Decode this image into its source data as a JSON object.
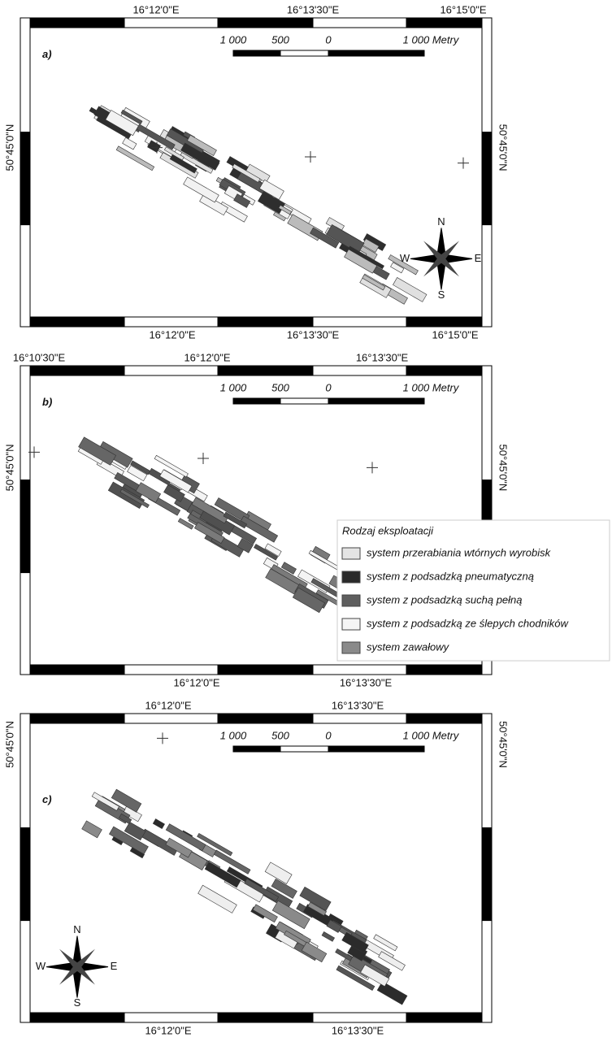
{
  "panels": [
    {
      "label": "a)",
      "top_labels": [
        "16°12'0\"E",
        "16°13'30\"E",
        "16°15'0\"E"
      ],
      "bottom_labels": [
        "16°12'0\"E",
        "16°13'30\"E",
        "16°15'0\"E"
      ],
      "left_label": "50°45'0\"N",
      "right_label": "50°45'0\"N",
      "scale": [
        "1 000",
        "500",
        "0",
        "1 000 Metry"
      ],
      "compass": [
        "N",
        "S",
        "W",
        "E"
      ]
    },
    {
      "label": "b)",
      "top_labels": [
        "16°10'30\"E",
        "16°12'0\"E",
        "16°13'30\"E"
      ],
      "bottom_labels": [
        "16°12'0\"E",
        "16°13'30\"E"
      ],
      "left_label": "50°45'0\"N",
      "right_label": "50°45'0\"N",
      "scale": [
        "1 000",
        "500",
        "0",
        "1 000 Metry"
      ]
    },
    {
      "label": "c)",
      "top_labels": [
        "16°12'0\"E",
        "16°13'30\"E"
      ],
      "bottom_labels": [
        "16°12'0\"E",
        "16°13'30\"E"
      ],
      "left_label": "50°45'0\"N",
      "right_label": "50°45'0\"N",
      "scale": [
        "1 000",
        "500",
        "0",
        "1 000 Metry"
      ],
      "compass": [
        "N",
        "S",
        "W",
        "E"
      ]
    }
  ],
  "legend": {
    "title": "Rodzaj eksploatacji",
    "items": [
      {
        "name": "system przerabiania wtórnych wyrobisk",
        "color": "#e4e4e4"
      },
      {
        "name": "system z podsadzką pneumatyczną",
        "color": "#2a2a2a"
      },
      {
        "name": "system z podsadzką suchą pełną",
        "color": "#5e5e5e"
      },
      {
        "name": "system z podsadzką ze ślepych chodników",
        "color": "#f5f5f5"
      },
      {
        "name": "system zawałowy",
        "color": "#8a8a8a"
      }
    ]
  }
}
